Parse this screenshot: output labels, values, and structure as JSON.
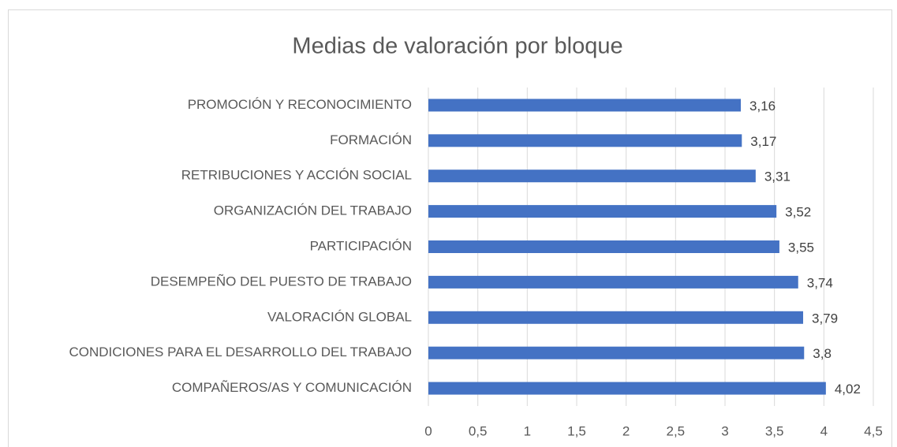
{
  "chart_data": {
    "type": "bar",
    "orientation": "horizontal",
    "title": "Medias de valoración por bloque",
    "categories": [
      "PROMOCIÓN Y RECONOCIMIENTO",
      "FORMACIÓN",
      "RETRIBUCIONES Y ACCIÓN SOCIAL",
      "ORGANIZACIÓN DEL TRABAJO",
      "PARTICIPACIÓN",
      "DESEMPEÑO DEL PUESTO DE TRABAJO",
      "VALORACIÓN GLOBAL",
      "CONDICIONES PARA EL DESARROLLO DEL TRABAJO",
      "COMPAÑEROS/AS Y COMUNICACIÓN"
    ],
    "values": [
      3.16,
      3.17,
      3.31,
      3.52,
      3.55,
      3.74,
      3.79,
      3.8,
      4.02
    ],
    "value_labels": [
      "3,16",
      "3,17",
      "3,31",
      "3,52",
      "3,55",
      "3,74",
      "3,79",
      "3,8",
      "4,02"
    ],
    "color": "#4472c4",
    "xlim": [
      0,
      4.5
    ],
    "xticks": [
      0,
      {
        "value": 0.5,
        "label": "0,5"
      },
      1,
      {
        "value": 1.5,
        "label": "1,5"
      },
      2,
      {
        "value": 2.5,
        "label": "2,5"
      },
      3,
      {
        "value": 3.5,
        "label": "3,5"
      },
      4,
      {
        "value": 4.5,
        "label": "4,5"
      }
    ],
    "grid": true
  }
}
